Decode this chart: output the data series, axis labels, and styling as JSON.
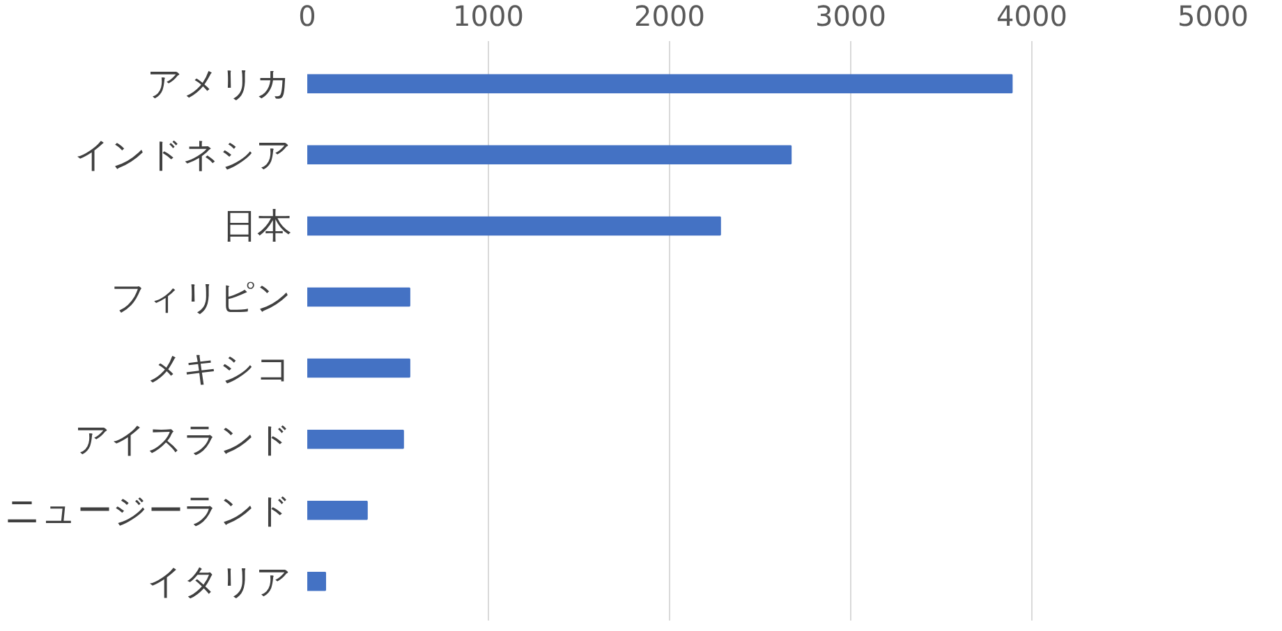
{
  "chart_data": {
    "type": "bar",
    "orientation": "horizontal",
    "categories": [
      "アメリカ",
      "インドネシア",
      "日本",
      "フィリピン",
      "メキシコ",
      "アイスランド",
      "ニュージーランド",
      "イタリア"
    ],
    "values": [
      3890,
      2670,
      2280,
      565,
      565,
      530,
      330,
      100
    ],
    "color": "#4472c4",
    "xlim": [
      0,
      5000
    ],
    "xticks": [
      0,
      1000,
      2000,
      3000,
      4000,
      5000
    ],
    "grid": "x"
  }
}
